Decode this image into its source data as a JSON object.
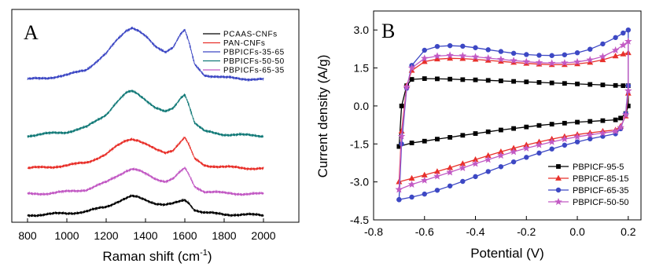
{
  "chart_data": [
    {
      "type": "line",
      "panel_label": "A",
      "title": "",
      "xlabel": "Raman shift (cm",
      "xlabel_sup": "-1",
      "xlabel_end": ")",
      "ylabel": "",
      "xlim": [
        720,
        2180
      ],
      "xticks": [
        800,
        1000,
        1200,
        1400,
        1600,
        1800,
        2000
      ],
      "xtick_labels": [
        "800",
        "1000",
        "1200",
        "1400",
        "1600",
        "1800",
        "2000"
      ],
      "y_ticks_shown": false,
      "grid": false,
      "legend": "top-right",
      "series": [
        {
          "name": "PCAAS-CNFs",
          "color": "#000000",
          "offset": 0.0,
          "x": [
            800,
            900,
            1000,
            1100,
            1200,
            1250,
            1300,
            1330,
            1360,
            1400,
            1450,
            1500,
            1540,
            1580,
            1600,
            1620,
            1650,
            1700,
            1800,
            1900,
            2000
          ],
          "y": [
            0.0,
            0.02,
            0.04,
            0.08,
            0.18,
            0.28,
            0.36,
            0.4,
            0.38,
            0.33,
            0.26,
            0.22,
            0.24,
            0.3,
            0.33,
            0.27,
            0.12,
            0.05,
            0.02,
            0.01,
            0.0
          ]
        },
        {
          "name": "PAN-CNFs",
          "color": "#e8302a",
          "offset": 1.0,
          "x": [
            800,
            900,
            1000,
            1100,
            1200,
            1250,
            1300,
            1330,
            1360,
            1400,
            1450,
            1500,
            1540,
            1580,
            1600,
            1620,
            1650,
            1700,
            1800,
            1900,
            2000
          ],
          "y": [
            0.0,
            0.03,
            0.06,
            0.13,
            0.3,
            0.46,
            0.6,
            0.64,
            0.61,
            0.52,
            0.4,
            0.34,
            0.4,
            0.58,
            0.66,
            0.5,
            0.2,
            0.07,
            0.03,
            0.01,
            0.0
          ]
        },
        {
          "name": "PBPICFs-35-65",
          "color": "#3d48c4",
          "offset": 2.9,
          "x": [
            800,
            900,
            1000,
            1100,
            1200,
            1250,
            1300,
            1330,
            1360,
            1400,
            1450,
            1500,
            1540,
            1580,
            1600,
            1620,
            1650,
            1700,
            1800,
            1900,
            2000
          ],
          "y": [
            0.0,
            0.04,
            0.09,
            0.22,
            0.55,
            0.82,
            1.05,
            1.12,
            1.06,
            0.92,
            0.7,
            0.6,
            0.7,
            0.98,
            1.05,
            0.8,
            0.32,
            0.1,
            0.04,
            0.02,
            0.0
          ]
        },
        {
          "name": "PBPICFs-50-50",
          "color": "#137a78",
          "offset": 1.7,
          "x": [
            800,
            900,
            1000,
            1100,
            1200,
            1250,
            1300,
            1330,
            1360,
            1400,
            1450,
            1500,
            1540,
            1580,
            1600,
            1620,
            1650,
            1700,
            1800,
            1900,
            2000
          ],
          "y": [
            0.0,
            0.04,
            0.08,
            0.18,
            0.46,
            0.7,
            0.9,
            0.95,
            0.9,
            0.78,
            0.6,
            0.5,
            0.58,
            0.82,
            0.9,
            0.68,
            0.27,
            0.09,
            0.03,
            0.01,
            0.0
          ]
        },
        {
          "name": "PBPICFs-65-35",
          "color": "#c25ac4",
          "offset": 0.45,
          "x": [
            800,
            900,
            1000,
            1100,
            1200,
            1250,
            1300,
            1330,
            1360,
            1400,
            1450,
            1500,
            1540,
            1580,
            1600,
            1620,
            1650,
            1700,
            1800,
            1900,
            2000
          ],
          "y": [
            0.0,
            0.02,
            0.05,
            0.1,
            0.25,
            0.38,
            0.5,
            0.54,
            0.51,
            0.43,
            0.33,
            0.28,
            0.33,
            0.48,
            0.55,
            0.42,
            0.17,
            0.06,
            0.02,
            0.01,
            0.0
          ]
        }
      ]
    },
    {
      "type": "line",
      "panel_label": "B",
      "title": "",
      "xlabel": "Potential (V)",
      "ylabel": "Current density (A/g)",
      "xlim": [
        -0.8,
        0.25
      ],
      "ylim": [
        -4.5,
        3.75
      ],
      "xticks": [
        -0.8,
        -0.6,
        -0.4,
        -0.2,
        0.0,
        0.2
      ],
      "xtick_labels": [
        "-0.8",
        "-0.6",
        "-0.4",
        "-0.2",
        "0.0",
        "0.2"
      ],
      "yticks": [
        -4.5,
        -3.0,
        -1.5,
        0.0,
        1.5,
        3.0
      ],
      "ytick_labels": [
        "-4.5",
        "-3.0",
        "-1.5",
        "0.0",
        "1.5",
        "3.0"
      ],
      "grid": false,
      "legend": "bottom-right",
      "series": [
        {
          "name": "PBPICF-95-5",
          "color": "#000000",
          "marker": "square",
          "x": [
            -0.7,
            -0.69,
            -0.67,
            -0.65,
            -0.6,
            -0.55,
            -0.5,
            -0.45,
            -0.4,
            -0.35,
            -0.3,
            -0.25,
            -0.2,
            -0.15,
            -0.1,
            -0.05,
            0.0,
            0.05,
            0.1,
            0.15,
            0.18,
            0.2,
            0.2,
            0.19,
            0.17,
            0.15,
            0.1,
            0.05,
            0.0,
            -0.05,
            -0.1,
            -0.15,
            -0.2,
            -0.25,
            -0.3,
            -0.35,
            -0.4,
            -0.45,
            -0.5,
            -0.55,
            -0.6,
            -0.65,
            -0.7
          ],
          "y": [
            -1.6,
            0.0,
            0.8,
            1.05,
            1.08,
            1.07,
            1.06,
            1.04,
            1.03,
            1.01,
            0.99,
            0.97,
            0.95,
            0.93,
            0.91,
            0.89,
            0.87,
            0.85,
            0.83,
            0.81,
            0.8,
            0.8,
            0.0,
            -0.3,
            -0.48,
            -0.55,
            -0.58,
            -0.61,
            -0.64,
            -0.68,
            -0.72,
            -0.77,
            -0.83,
            -0.89,
            -0.95,
            -1.02,
            -1.09,
            -1.16,
            -1.24,
            -1.31,
            -1.39,
            -1.46,
            -1.6
          ]
        },
        {
          "name": "PBPICF-85-15",
          "color": "#e8302a",
          "marker": "triangle",
          "x": [
            -0.7,
            -0.69,
            -0.67,
            -0.65,
            -0.6,
            -0.55,
            -0.5,
            -0.45,
            -0.4,
            -0.35,
            -0.3,
            -0.25,
            -0.2,
            -0.15,
            -0.1,
            -0.05,
            0.0,
            0.05,
            0.1,
            0.15,
            0.18,
            0.2,
            0.2,
            0.19,
            0.17,
            0.15,
            0.1,
            0.05,
            0.0,
            -0.05,
            -0.1,
            -0.15,
            -0.2,
            -0.25,
            -0.3,
            -0.35,
            -0.4,
            -0.45,
            -0.5,
            -0.55,
            -0.6,
            -0.65,
            -0.7
          ],
          "y": [
            -3.0,
            -1.0,
            0.8,
            1.4,
            1.75,
            1.85,
            1.88,
            1.87,
            1.84,
            1.8,
            1.76,
            1.72,
            1.68,
            1.65,
            1.63,
            1.63,
            1.66,
            1.72,
            1.82,
            1.97,
            2.05,
            2.1,
            0.5,
            -0.4,
            -0.8,
            -0.95,
            -1.0,
            -1.06,
            -1.13,
            -1.21,
            -1.31,
            -1.42,
            -1.54,
            -1.67,
            -1.81,
            -1.96,
            -2.12,
            -2.28,
            -2.44,
            -2.59,
            -2.73,
            -2.86,
            -3.0
          ]
        },
        {
          "name": "PBPICF-65-35",
          "color": "#3d48c4",
          "marker": "circle",
          "x": [
            -0.7,
            -0.69,
            -0.67,
            -0.65,
            -0.6,
            -0.55,
            -0.5,
            -0.45,
            -0.4,
            -0.35,
            -0.3,
            -0.25,
            -0.2,
            -0.15,
            -0.1,
            -0.05,
            0.0,
            0.05,
            0.1,
            0.15,
            0.18,
            0.2,
            0.2,
            0.19,
            0.17,
            0.15,
            0.1,
            0.05,
            0.0,
            -0.05,
            -0.1,
            -0.15,
            -0.2,
            -0.25,
            -0.3,
            -0.35,
            -0.4,
            -0.45,
            -0.5,
            -0.55,
            -0.6,
            -0.65,
            -0.7
          ],
          "y": [
            -3.7,
            -1.5,
            0.7,
            1.6,
            2.2,
            2.35,
            2.38,
            2.36,
            2.3,
            2.22,
            2.15,
            2.08,
            2.03,
            2.0,
            1.99,
            2.02,
            2.1,
            2.24,
            2.45,
            2.7,
            2.88,
            3.0,
            0.8,
            -0.3,
            -0.9,
            -1.1,
            -1.2,
            -1.3,
            -1.42,
            -1.55,
            -1.7,
            -1.86,
            -2.03,
            -2.21,
            -2.4,
            -2.59,
            -2.79,
            -2.98,
            -3.16,
            -3.33,
            -3.48,
            -3.6,
            -3.7
          ]
        },
        {
          "name": "PBPICF-50-50",
          "color": "#c25ac4",
          "marker": "star",
          "x": [
            -0.7,
            -0.69,
            -0.67,
            -0.65,
            -0.6,
            -0.55,
            -0.5,
            -0.45,
            -0.4,
            -0.35,
            -0.3,
            -0.25,
            -0.2,
            -0.15,
            -0.1,
            -0.05,
            0.0,
            0.05,
            0.1,
            0.15,
            0.18,
            0.2,
            0.2,
            0.19,
            0.17,
            0.15,
            0.1,
            0.05,
            0.0,
            -0.05,
            -0.1,
            -0.15,
            -0.2,
            -0.25,
            -0.3,
            -0.35,
            -0.4,
            -0.45,
            -0.5,
            -0.55,
            -0.6,
            -0.65,
            -0.7
          ],
          "y": [
            -3.3,
            -1.2,
            0.75,
            1.5,
            1.88,
            1.97,
            2.0,
            1.98,
            1.94,
            1.89,
            1.84,
            1.79,
            1.75,
            1.71,
            1.69,
            1.7,
            1.74,
            1.82,
            1.95,
            2.2,
            2.4,
            2.55,
            0.6,
            -0.35,
            -0.85,
            -1.0,
            -1.07,
            -1.14,
            -1.22,
            -1.31,
            -1.42,
            -1.54,
            -1.67,
            -1.81,
            -1.96,
            -2.12,
            -2.28,
            -2.45,
            -2.62,
            -2.78,
            -2.94,
            -3.1,
            -3.3
          ]
        }
      ]
    }
  ]
}
